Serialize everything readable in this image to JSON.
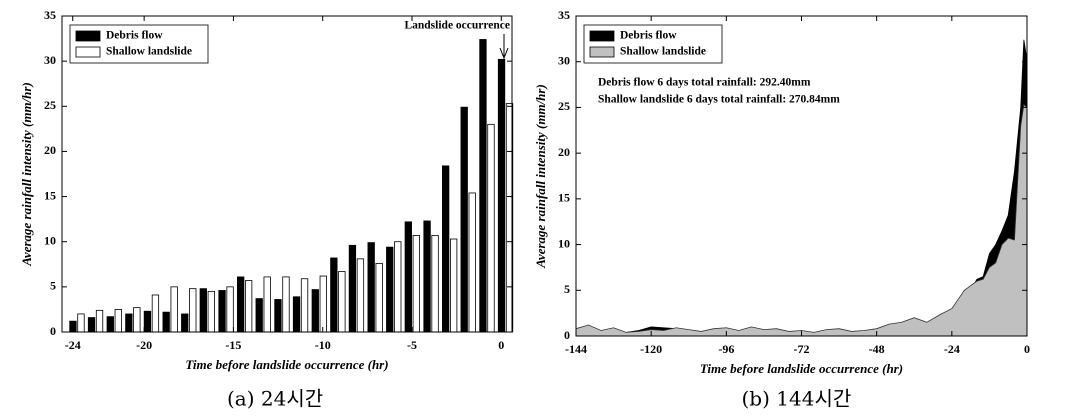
{
  "chart_data": [
    {
      "type": "bar",
      "xlabel": "Time before landslide occurrence (hr)",
      "ylabel": "Average rainfall intensity (mm/hr)",
      "caption": "(a)  24시간",
      "annotation": "Landslide occurrence",
      "legend": "upper left",
      "x": [
        -24,
        -22.96,
        -21.91,
        -20.87,
        -19.83,
        -18.78,
        -17.74,
        -16.7,
        -15.65,
        -14.61,
        -13.57,
        -12.52,
        -11.48,
        -10.43,
        -9.39,
        -8.35,
        -7.3,
        -6.26,
        -5.22,
        -4.17,
        -3.13,
        -2.09,
        -1.04,
        0
      ],
      "series": [
        {
          "name": "Debris flow",
          "color": "#000000",
          "values": [
            1.2,
            1.6,
            1.7,
            2.0,
            2.3,
            2.2,
            2.0,
            4.8,
            4.6,
            6.1,
            3.7,
            3.6,
            3.9,
            4.7,
            8.2,
            9.6,
            9.9,
            9.4,
            12.2,
            12.3,
            18.4,
            24.9,
            32.4,
            30.2
          ]
        },
        {
          "name": "Shallow landslide",
          "color": "#ffffff",
          "values": [
            2.0,
            2.4,
            2.5,
            2.7,
            4.1,
            5.0,
            4.8,
            4.5,
            5.0,
            5.7,
            6.1,
            6.1,
            5.9,
            6.2,
            6.7,
            8.1,
            7.6,
            10.0,
            10.7,
            10.7,
            10.3,
            15.4,
            23.0,
            25.3
          ]
        }
      ],
      "xlim": [
        -24.6,
        0.6
      ],
      "xticks": [
        -24,
        -20,
        -15,
        -10,
        -5,
        0
      ],
      "ylim": [
        0,
        35
      ],
      "yticks": [
        0,
        5,
        10,
        15,
        20,
        25,
        30,
        35
      ]
    },
    {
      "type": "area",
      "xlabel": "Time before landslide occurrence (hr)",
      "ylabel": "Average rainfall intensity (mm/hr)",
      "caption": "(b)  144시간",
      "annotations": [
        "Debris flow 6 days total rainfall: 292.40mm",
        "Shallow landslide 6 days total rainfall: 270.84mm"
      ],
      "legend": "upper left",
      "x": [
        -144,
        -140,
        -136,
        -132,
        -128,
        -124,
        -120,
        -116,
        -112,
        -108,
        -104,
        -100,
        -96,
        -92,
        -88,
        -84,
        -80,
        -76,
        -72,
        -68,
        -64,
        -60,
        -56,
        -52,
        -48,
        -44,
        -40,
        -36,
        -32,
        -28,
        -24,
        -22,
        -20,
        -18,
        -16,
        -14,
        -12,
        -10,
        -8,
        -6,
        -4,
        -2,
        -1,
        0
      ],
      "series": [
        {
          "name": "Debris flow",
          "color": "#000000",
          "values": [
            0.2,
            0.3,
            0.2,
            0.5,
            0.4,
            0.6,
            1.0,
            0.9,
            0.8,
            0.3,
            0.2,
            0.3,
            0.2,
            0.4,
            0.3,
            0.2,
            0.4,
            0.3,
            0.3,
            0.4,
            0.2,
            0.3,
            0.3,
            0.4,
            0.5,
            0.3,
            0.8,
            1.2,
            1.0,
            1.8,
            2.6,
            3.5,
            4.0,
            5.0,
            6.2,
            6.5,
            9.0,
            10.0,
            11.5,
            13.2,
            18.0,
            25.0,
            32.4,
            30.2
          ]
        },
        {
          "name": "Shallow landslide",
          "color": "#c0c0c0",
          "values": [
            0.8,
            1.2,
            0.6,
            0.9,
            0.4,
            0.5,
            0.7,
            0.6,
            0.9,
            0.7,
            0.5,
            0.8,
            0.9,
            0.6,
            1.0,
            0.7,
            0.8,
            0.5,
            0.6,
            0.4,
            0.7,
            0.8,
            0.5,
            0.6,
            0.8,
            1.3,
            1.5,
            2.0,
            1.5,
            2.3,
            3.0,
            4.0,
            5.0,
            5.5,
            6.0,
            6.2,
            7.5,
            8.0,
            10.0,
            10.7,
            10.5,
            23.0,
            25.3,
            25.0
          ]
        }
      ],
      "xlim": [
        -144,
        0
      ],
      "xticks": [
        -144,
        -120,
        -96,
        -72,
        -48,
        -24,
        0
      ],
      "ylim": [
        0,
        35
      ],
      "yticks": [
        0,
        5,
        10,
        15,
        20,
        25,
        30,
        35
      ]
    }
  ]
}
